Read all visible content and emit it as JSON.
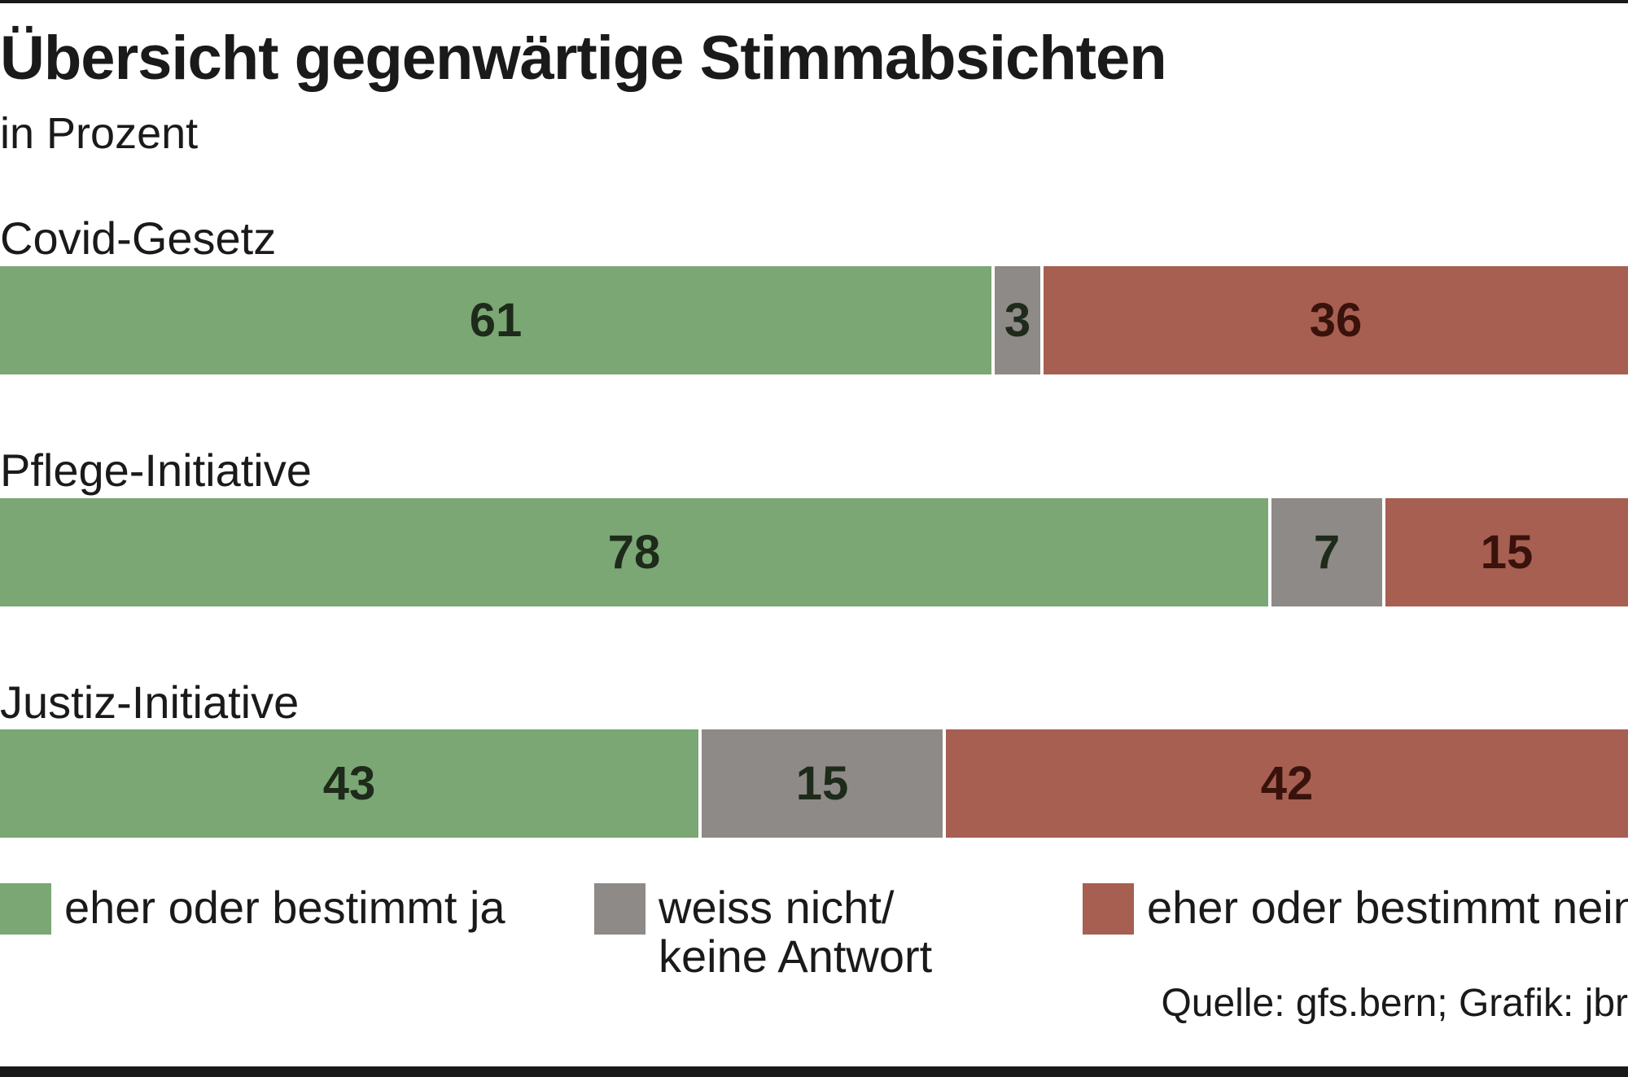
{
  "title": "Übersicht gegenwärtige Stimmabsichten",
  "subtitle": "in Prozent",
  "source": "Quelle: gfs.bern; Grafik: jbr",
  "colors": {
    "ja": "#7aa774",
    "unsure": "#8e8a87",
    "nein": "#a65f51",
    "text_dark": "#1e2a1a",
    "text_nein": "#3a120c"
  },
  "legend": [
    {
      "key": "ja",
      "lines": [
        "eher oder bestimmt ja"
      ]
    },
    {
      "key": "unsure",
      "lines": [
        "weiss nicht/",
        "keine Antwort"
      ]
    },
    {
      "key": "nein",
      "lines": [
        "eher oder bestimmt nein"
      ]
    }
  ],
  "chart_data": {
    "type": "bar",
    "orientation": "horizontal",
    "stacked": true,
    "title": "Übersicht gegenwärtige Stimmabsichten",
    "subtitle": "in Prozent",
    "categories": [
      "Covid-Gesetz",
      "Pflege-Initiative",
      "Justiz-Initiative"
    ],
    "series": [
      {
        "name": "eher oder bestimmt ja",
        "values": [
          61,
          78,
          43
        ]
      },
      {
        "name": "weiss nicht/ keine Antwort",
        "values": [
          3,
          7,
          15
        ]
      },
      {
        "name": "eher oder bestimmt nein",
        "values": [
          36,
          15,
          42
        ]
      }
    ],
    "xlim": [
      0,
      100
    ],
    "grid": false,
    "legend_position": "bottom"
  }
}
